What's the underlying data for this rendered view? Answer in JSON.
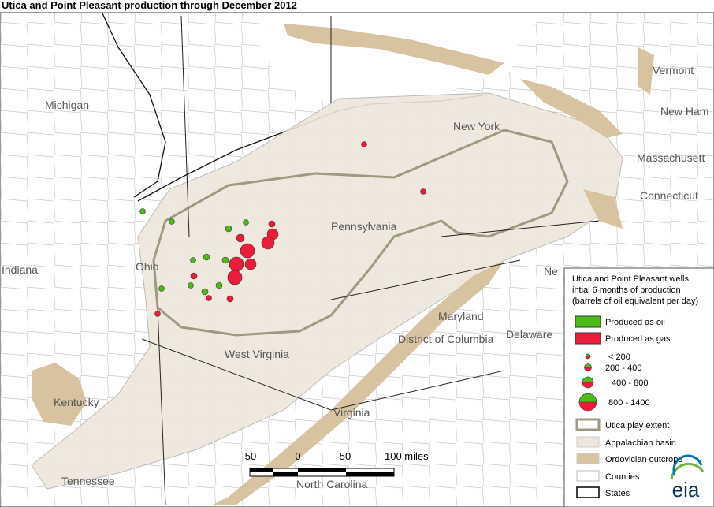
{
  "title": "Utica and Point Pleasant production through December 2012",
  "map_labels": [
    "Michigan",
    "New York",
    "Vermont",
    "New Ham",
    "Massachusett",
    "Connecticut",
    "Pennsylvania",
    "Ohio",
    "Indiana",
    "Ne",
    "Maryland",
    "Delaware",
    "District of Columbia",
    "West Virginia",
    "Kentucky",
    "Virginia",
    "North Carolina",
    "Tennessee"
  ],
  "scale_bar": [
    "50",
    "0",
    "50",
    "100 miles"
  ],
  "legend": {
    "title_lines": [
      "Utica and Point Pleasant wells",
      "intial 6 months of production",
      "(barrels of oil equivalent per day)"
    ],
    "production": [
      "Produced as oil",
      "Produced as gas"
    ],
    "sizes": [
      "< 200",
      "200 - 400",
      "400 - 800",
      "800 - 1400"
    ],
    "layers": [
      "Utica play extent",
      "Appalachian basin",
      "Ordovician outcrops",
      "Counties",
      "States"
    ]
  },
  "logo": "eia"
}
